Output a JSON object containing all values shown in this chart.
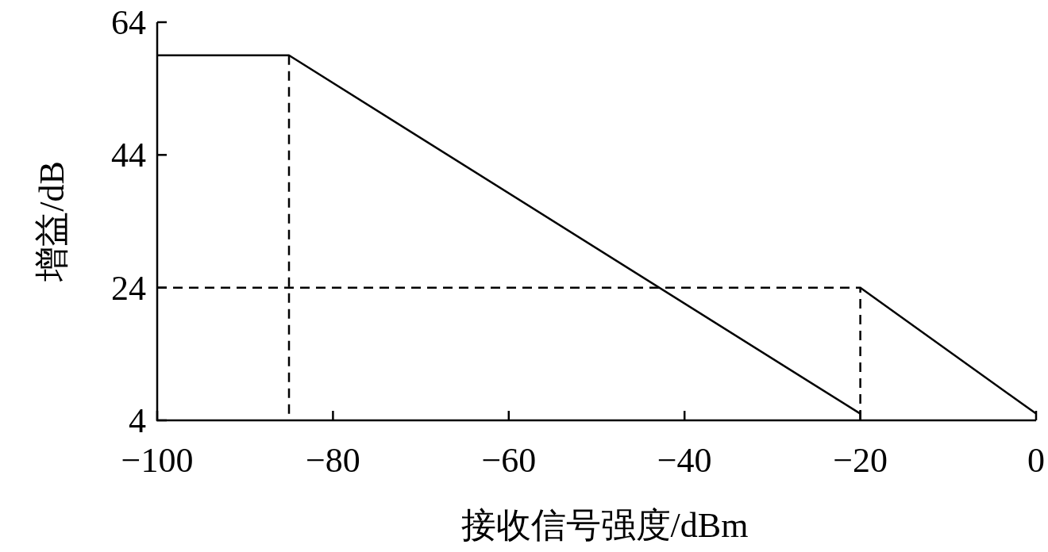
{
  "chart_data": {
    "type": "line",
    "xlabel": "接收信号强度/dBm",
    "ylabel": "增益/dB",
    "xlim": [
      -100,
      0
    ],
    "xticks": [
      -100,
      -80,
      -60,
      -40,
      -20,
      0
    ],
    "ylim": [
      4,
      64
    ],
    "yticks": [
      4,
      24,
      44,
      64
    ],
    "series": [
      {
        "color": "#000000",
        "line_style": "solid",
        "x": [
          -100,
          -85,
          -20
        ],
        "values": [
          59,
          59,
          5
        ]
      },
      {
        "color": "#000000",
        "line_style": "solid",
        "x": [
          -20,
          0
        ],
        "values": [
          24,
          5
        ]
      },
      {
        "color": "#000000",
        "line_style": "dashed",
        "x": [
          -85,
          -85
        ],
        "values": [
          59,
          4
        ]
      },
      {
        "color": "#000000",
        "line_style": "dashed",
        "x": [
          -100,
          -20,
          -20
        ],
        "values": [
          24,
          24,
          4
        ]
      }
    ]
  }
}
